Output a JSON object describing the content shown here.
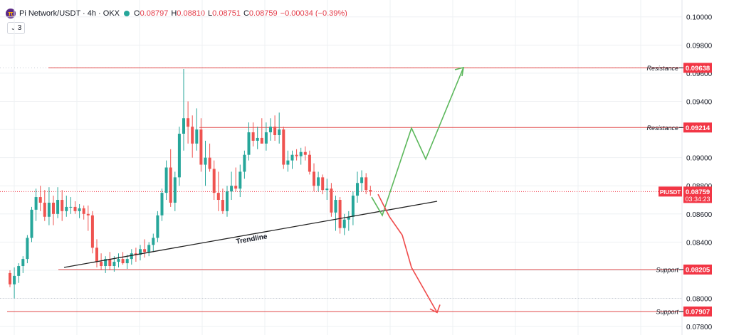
{
  "header": {
    "symbol_title": "Pi Network/USDT · 4h · OKX",
    "open_label": "O",
    "open": "0.08797",
    "high_label": "H",
    "high": "0.08810",
    "low_label": "L",
    "low": "0.08751",
    "close_label": "C",
    "close": "0.08759",
    "change": "−0.00034 (−0.39%)",
    "logo_glyph": "π",
    "indicator_chevron": "⌄",
    "indicator_count": "3"
  },
  "colors": {
    "up": "#26a69a",
    "down": "#ef5350",
    "level_line": "#e04848",
    "green_arrow": "#5cb85c",
    "red_arrow": "#ef4b4b",
    "trendline": "#222222",
    "price_badge": "#f23645"
  },
  "chart_data": {
    "type": "candlestick",
    "symbol": "Pi Network/USDT",
    "interval": "4h",
    "exchange": "OKX",
    "y_axis_ticks": [
      "0.10000",
      "0.09800",
      "0.09600",
      "0.09400",
      "0.09200",
      "0.09000",
      "0.08800",
      "0.08600",
      "0.08400",
      "0.08200",
      "0.08000",
      "0.07800"
    ],
    "ylim": [
      0.0774,
      0.1012
    ],
    "grid": true,
    "levels": [
      {
        "label": "Resistance",
        "value": 0.09638
      },
      {
        "label": "Resistance",
        "value": 0.09214
      },
      {
        "label": "Support",
        "value": 0.08205
      },
      {
        "label": "Support",
        "value": 0.07907
      }
    ],
    "current_price": {
      "symbol": "PIUSDT",
      "value": 0.08759,
      "countdown": "03:34:23"
    },
    "trendline": {
      "label": "Trendline",
      "points": [
        [
          0,
          0.0816
        ],
        [
          116,
          0.0865
        ]
      ]
    },
    "candles": [
      [
        0.0818,
        0.082,
        0.0808,
        0.081
      ],
      [
        0.081,
        0.0822,
        0.08,
        0.0816
      ],
      [
        0.0816,
        0.0825,
        0.0811,
        0.0823
      ],
      [
        0.0823,
        0.083,
        0.0818,
        0.0828
      ],
      [
        0.0828,
        0.0845,
        0.0825,
        0.0843
      ],
      [
        0.0843,
        0.0865,
        0.084,
        0.0863
      ],
      [
        0.0863,
        0.0878,
        0.0855,
        0.0872
      ],
      [
        0.0872,
        0.088,
        0.0862,
        0.0868
      ],
      [
        0.0868,
        0.0877,
        0.0855,
        0.0858
      ],
      [
        0.0858,
        0.0879,
        0.0852,
        0.0868
      ],
      [
        0.0868,
        0.0873,
        0.0852,
        0.086
      ],
      [
        0.086,
        0.0879,
        0.0857,
        0.087
      ],
      [
        0.087,
        0.0877,
        0.0855,
        0.0862
      ],
      [
        0.0862,
        0.0873,
        0.0858,
        0.0865
      ],
      [
        0.0865,
        0.0872,
        0.086,
        0.0865
      ],
      [
        0.0865,
        0.0869,
        0.086,
        0.0862
      ],
      [
        0.0862,
        0.0867,
        0.0857,
        0.0864
      ],
      [
        0.0864,
        0.0866,
        0.0856,
        0.086
      ],
      [
        0.086,
        0.0866,
        0.0848,
        0.0859
      ],
      [
        0.0859,
        0.0862,
        0.0832,
        0.0836
      ],
      [
        0.0836,
        0.0842,
        0.0822,
        0.0826
      ],
      [
        0.0826,
        0.0832,
        0.082,
        0.0823
      ],
      [
        0.0823,
        0.083,
        0.0818,
        0.0828
      ],
      [
        0.0828,
        0.0833,
        0.082,
        0.0823
      ],
      [
        0.0823,
        0.083,
        0.0819,
        0.0826
      ],
      [
        0.0826,
        0.0832,
        0.0822,
        0.0828
      ],
      [
        0.0828,
        0.0833,
        0.0824,
        0.0825
      ],
      [
        0.0825,
        0.0831,
        0.0821,
        0.0828
      ],
      [
        0.0828,
        0.0835,
        0.0824,
        0.0832
      ],
      [
        0.0832,
        0.0836,
        0.0826,
        0.0831
      ],
      [
        0.0831,
        0.0838,
        0.0827,
        0.0835
      ],
      [
        0.0835,
        0.0842,
        0.0829,
        0.0833
      ],
      [
        0.0833,
        0.084,
        0.083,
        0.0838
      ],
      [
        0.0838,
        0.0846,
        0.0833,
        0.0843
      ],
      [
        0.0843,
        0.0862,
        0.084,
        0.0859
      ],
      [
        0.0859,
        0.0878,
        0.0855,
        0.0875
      ],
      [
        0.0875,
        0.0898,
        0.087,
        0.0893
      ],
      [
        0.0893,
        0.0906,
        0.0865,
        0.0868
      ],
      [
        0.0868,
        0.089,
        0.0862,
        0.0886
      ],
      [
        0.0886,
        0.0922,
        0.088,
        0.0917
      ],
      [
        0.0917,
        0.0963,
        0.0905,
        0.0928
      ],
      [
        0.0928,
        0.094,
        0.091,
        0.0922
      ],
      [
        0.0922,
        0.093,
        0.09,
        0.091
      ],
      [
        0.091,
        0.0935,
        0.0905,
        0.092
      ],
      [
        0.092,
        0.0928,
        0.089,
        0.0895
      ],
      [
        0.0895,
        0.0912,
        0.088,
        0.09
      ],
      [
        0.09,
        0.091,
        0.089,
        0.0892
      ],
      [
        0.0892,
        0.0898,
        0.087,
        0.0875
      ],
      [
        0.0875,
        0.089,
        0.0862,
        0.087
      ],
      [
        0.087,
        0.0878,
        0.086,
        0.0862
      ],
      [
        0.0862,
        0.088,
        0.0858,
        0.0876
      ],
      [
        0.0876,
        0.089,
        0.087,
        0.088
      ],
      [
        0.088,
        0.0893,
        0.0876,
        0.0878
      ],
      [
        0.0878,
        0.0895,
        0.0872,
        0.089
      ],
      [
        0.089,
        0.0905,
        0.0885,
        0.0902
      ],
      [
        0.0902,
        0.0925,
        0.0898,
        0.0918
      ],
      [
        0.0918,
        0.0925,
        0.0908,
        0.0912
      ],
      [
        0.0912,
        0.0922,
        0.0906,
        0.0914
      ],
      [
        0.0914,
        0.0928,
        0.091,
        0.091
      ],
      [
        0.091,
        0.0925,
        0.0905,
        0.0918
      ],
      [
        0.0918,
        0.0928,
        0.0912,
        0.0922
      ],
      [
        0.0922,
        0.093,
        0.0912,
        0.0916
      ],
      [
        0.0916,
        0.0932,
        0.091,
        0.092
      ],
      [
        0.092,
        0.0922,
        0.0892,
        0.0895
      ],
      [
        0.0895,
        0.0905,
        0.089,
        0.0898
      ],
      [
        0.0898,
        0.0905,
        0.0892,
        0.0902
      ],
      [
        0.0902,
        0.0906,
        0.0898,
        0.0901
      ],
      [
        0.0901,
        0.0907,
        0.0895,
        0.0904
      ],
      [
        0.0904,
        0.0908,
        0.0898,
        0.0902
      ],
      [
        0.0902,
        0.0905,
        0.0888,
        0.089
      ],
      [
        0.089,
        0.0896,
        0.0876,
        0.088
      ],
      [
        0.088,
        0.089,
        0.0876,
        0.0886
      ],
      [
        0.0886,
        0.0888,
        0.0874,
        0.0877
      ],
      [
        0.0877,
        0.0885,
        0.087,
        0.0878
      ],
      [
        0.0878,
        0.0882,
        0.0858,
        0.0861
      ],
      [
        0.0861,
        0.0873,
        0.0848,
        0.087
      ],
      [
        0.087,
        0.0872,
        0.0846,
        0.085
      ],
      [
        0.085,
        0.086,
        0.0845,
        0.0856
      ],
      [
        0.0856,
        0.0862,
        0.0848,
        0.0858
      ],
      [
        0.0858,
        0.0876,
        0.0852,
        0.0873
      ],
      [
        0.0873,
        0.089,
        0.0868,
        0.0882
      ],
      [
        0.0882,
        0.0891,
        0.0876,
        0.0886
      ],
      [
        0.0886,
        0.0889,
        0.0874,
        0.0877
      ],
      [
        0.0877,
        0.088,
        0.0873,
        0.0876
      ]
    ],
    "green_projection_path": [
      [
        0.0872,
        "start"
      ],
      [
        0.0859,
        "dip"
      ],
      [
        0.0921,
        "up"
      ],
      [
        0.0899,
        "pullback"
      ],
      [
        0.0964,
        "target"
      ]
    ],
    "red_projection_path": [
      [
        0.0874,
        "start"
      ],
      [
        0.0858,
        "down"
      ],
      [
        0.0845,
        "bounce"
      ],
      [
        0.0822,
        "down"
      ],
      [
        0.079,
        "target"
      ]
    ]
  }
}
